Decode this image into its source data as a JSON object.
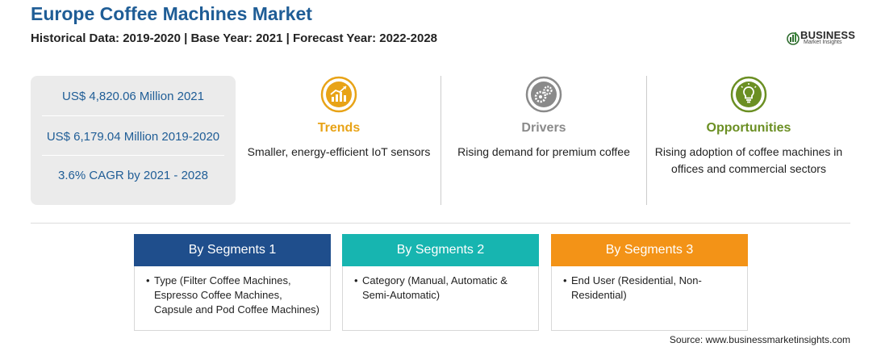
{
  "header": {
    "title": "Europe Coffee Machines Market",
    "subtitle": "Historical Data: 2019-2020 | Base Year: 2021 | Forecast Year: 2022-2028"
  },
  "logo": {
    "main": "BUSINESS",
    "sub": "Market Insights",
    "icon": "globe-bars-icon"
  },
  "stats": [
    {
      "text": "US$ 4,820.06 Million 2021"
    },
    {
      "text": "US$ 6,179.04 Million 2019-2020"
    },
    {
      "text": "3.6% CAGR by 2021 - 2028"
    }
  ],
  "columns": [
    {
      "label": "Trends",
      "description": "Smaller, energy-efficient IoT sensors",
      "icon": "chart-up-icon",
      "color": "#e8a317"
    },
    {
      "label": "Drivers",
      "description": "Rising demand for premium coffee",
      "icon": "gears-icon",
      "color": "#8a8a8a"
    },
    {
      "label": "Opportunities",
      "description": "Rising adoption of coffee machines in offices and commercial sectors",
      "icon": "lightbulb-icon",
      "color": "#6b8f23"
    }
  ],
  "segments": [
    {
      "title": "By Segments 1",
      "color": "#1f4e8c",
      "text": "Type (Filter Coffee Machines, Espresso Coffee Machines, Capsule and Pod Coffee Machines)"
    },
    {
      "title": "By Segments 2",
      "color": "#17b5b0",
      "text": "Category (Manual, Automatic & Semi-Automatic)"
    },
    {
      "title": "By Segments 3",
      "color": "#f39317",
      "text": "End User (Residential, Non-Residential)"
    }
  ],
  "source": "Source: www.businessmarketinsights.com"
}
